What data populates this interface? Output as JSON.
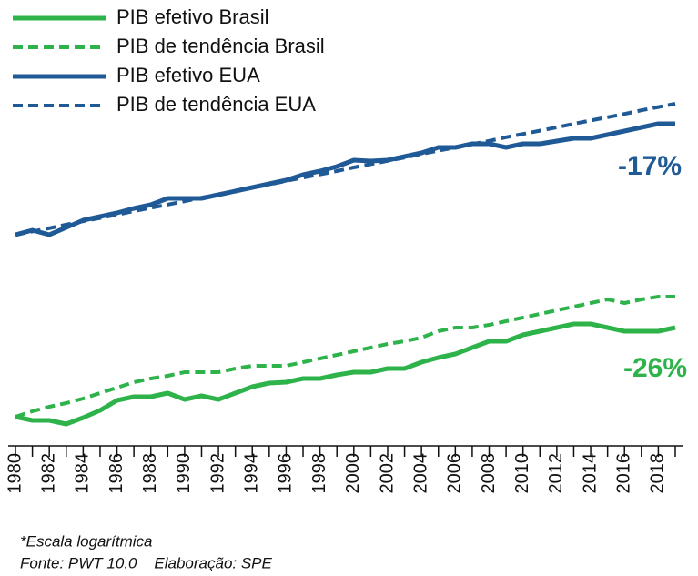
{
  "chart_data": {
    "type": "line",
    "x": [
      1980,
      1981,
      1982,
      1983,
      1984,
      1985,
      1986,
      1987,
      1988,
      1989,
      1990,
      1991,
      1992,
      1993,
      1994,
      1995,
      1996,
      1997,
      1998,
      1999,
      2000,
      2001,
      2002,
      2003,
      2004,
      2005,
      2006,
      2007,
      2008,
      2009,
      2010,
      2011,
      2012,
      2013,
      2014,
      2015,
      2016,
      2017,
      2018,
      2019
    ],
    "xlim": [
      1980,
      2019
    ],
    "xticks": [
      1980,
      1982,
      1984,
      1986,
      1988,
      1990,
      1992,
      1994,
      1996,
      1998,
      2000,
      2002,
      2004,
      2006,
      2008,
      2010,
      2012,
      2014,
      2016,
      2018
    ],
    "ylim": [
      0,
      100
    ],
    "series": [
      {
        "name": "PIB efetivo Brasil",
        "color": "#2db34a",
        "dashed": false,
        "values": [
          8,
          7,
          7,
          6,
          7.75,
          9.75,
          12.5,
          13.5,
          13.5,
          14.5,
          12.75,
          13.75,
          12.75,
          14.5,
          16.25,
          17.25,
          17.5,
          18.5,
          18.5,
          19.5,
          20.25,
          20.25,
          21.25,
          21.25,
          23,
          24.25,
          25.25,
          27,
          28.75,
          28.75,
          30.5,
          31.5,
          32.5,
          33.5,
          33.5,
          32.5,
          31.5,
          31.5,
          31.5,
          32.5
        ]
      },
      {
        "name": "PIB de tendência Brasil",
        "color": "#2db34a",
        "dashed": true,
        "values": [
          8,
          9.5,
          10.75,
          11.75,
          13,
          14.5,
          16,
          17.5,
          18.5,
          19.25,
          20.25,
          20.25,
          20.25,
          21.25,
          22,
          22,
          22,
          23,
          24,
          25,
          26,
          27,
          28,
          28.75,
          29.75,
          31.5,
          32.5,
          32.5,
          33.25,
          34.25,
          35.25,
          36.25,
          37.25,
          38.25,
          39.25,
          40.25,
          39.25,
          40.25,
          41,
          41
        ]
      },
      {
        "name": "PIB efetivo EUA",
        "color": "#1f5a96",
        "dashed": false,
        "values": [
          58,
          59.25,
          58,
          60,
          62,
          63,
          64,
          65.25,
          66.25,
          68,
          68,
          68,
          69,
          70,
          71,
          72,
          73,
          74.5,
          75.5,
          76.75,
          78.5,
          78.25,
          78.5,
          79.5,
          80.5,
          82,
          82,
          83,
          83,
          82,
          83,
          83,
          83.75,
          84.5,
          84.5,
          85.5,
          86.5,
          87.5,
          88.5,
          88.5
        ]
      },
      {
        "name": "PIB de tendência EUA",
        "color": "#1f5a96",
        "dashed": true,
        "values": [
          58,
          58.9,
          59.8,
          60.8,
          61.7,
          62.6,
          63.5,
          64.5,
          65.4,
          66.3,
          67.2,
          68.2,
          69.1,
          70,
          70.9,
          71.8,
          72.8,
          73.7,
          74.6,
          75.5,
          76.5,
          77.4,
          78.3,
          79.2,
          80.2,
          81.1,
          82,
          82.9,
          83.8,
          84.8,
          85.7,
          86.6,
          87.5,
          88.5,
          89.4,
          90.3,
          91.2,
          92.2,
          93.1,
          94
        ]
      }
    ],
    "annotations": [
      {
        "text": "-17%",
        "color": "#1f5a96"
      },
      {
        "text": "-26%",
        "color": "#2db34a"
      }
    ],
    "notes": [
      "*Escala logarítmica",
      "Fonte: PWT 10.0    Elaboração: SPE"
    ]
  }
}
